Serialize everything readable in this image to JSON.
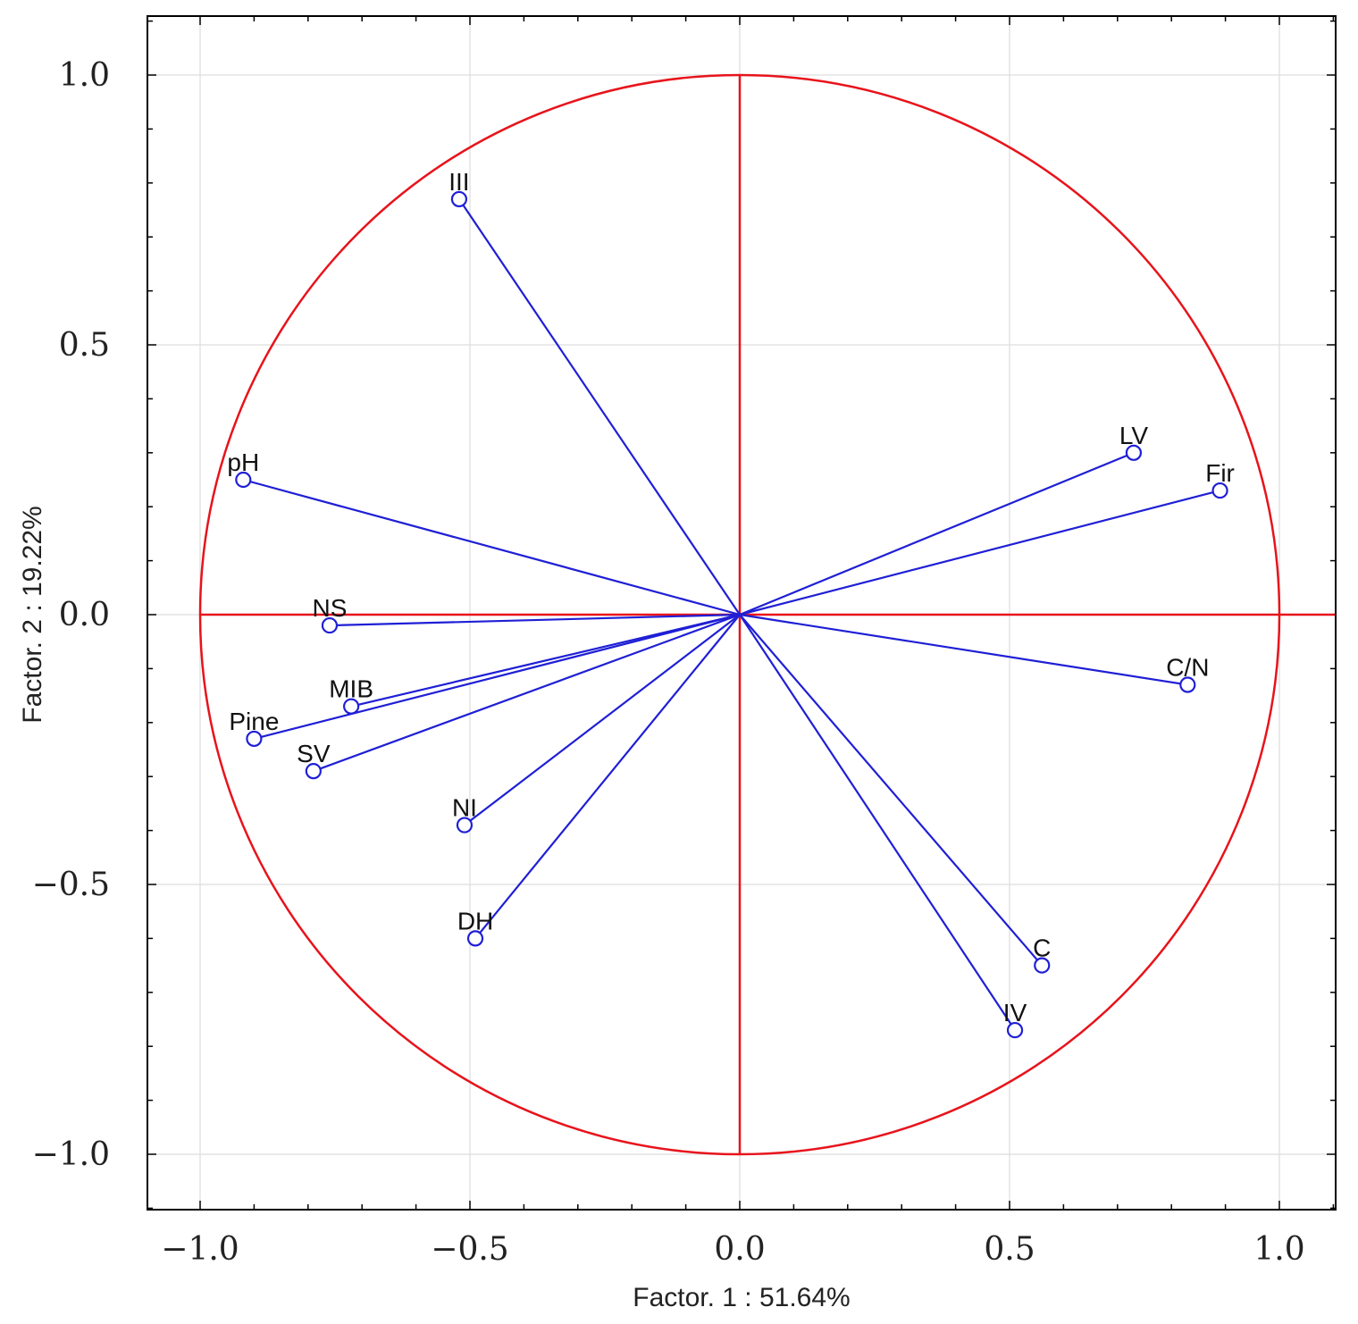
{
  "chart_data": {
    "type": "scatter",
    "title": "",
    "xlabel": "Factor. 1 : 51.64%",
    "ylabel": "Factor. 2 : 19.22%",
    "xlim": [
      -1.1,
      1.1
    ],
    "ylim": [
      -1.1,
      1.1
    ],
    "grid": true,
    "unit_circle": true,
    "xticks": [
      -1.0,
      -0.5,
      0.0,
      0.5,
      1.0
    ],
    "yticks": [
      -1.0,
      -0.5,
      0.0,
      0.5,
      1.0
    ],
    "xtick_labels": [
      "−1.0",
      "−0.5",
      "0.0",
      "0.5",
      "1.0"
    ],
    "ytick_labels": [
      "−1.0",
      "−0.5",
      "0.0",
      "0.5",
      "1.0"
    ],
    "colors": {
      "circle": "#e8131b",
      "vector": "#1f1fd6",
      "grid": "#dddddd",
      "frame": "#000000"
    },
    "points": [
      {
        "label": "III",
        "x": -0.52,
        "y": 0.77
      },
      {
        "label": "pH",
        "x": -0.92,
        "y": 0.25
      },
      {
        "label": "NS",
        "x": -0.76,
        "y": -0.02
      },
      {
        "label": "MIB",
        "x": -0.72,
        "y": -0.17
      },
      {
        "label": "Pine",
        "x": -0.9,
        "y": -0.23
      },
      {
        "label": "SV",
        "x": -0.79,
        "y": -0.29
      },
      {
        "label": "NI",
        "x": -0.51,
        "y": -0.39
      },
      {
        "label": "DH",
        "x": -0.49,
        "y": -0.6
      },
      {
        "label": "LV",
        "x": 0.73,
        "y": 0.3
      },
      {
        "label": "Fir",
        "x": 0.89,
        "y": 0.23
      },
      {
        "label": "C/N",
        "x": 0.83,
        "y": -0.13
      },
      {
        "label": "C",
        "x": 0.56,
        "y": -0.65
      },
      {
        "label": "IV",
        "x": 0.51,
        "y": -0.77
      }
    ]
  }
}
